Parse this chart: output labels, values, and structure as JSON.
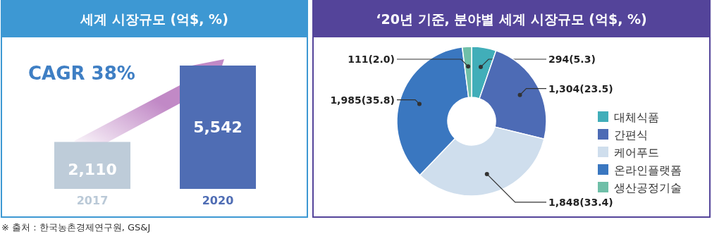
{
  "chart_data": [
    {
      "type": "bar",
      "title": "세계 시장규모 (억$, %)",
      "categories": [
        "2017",
        "2020"
      ],
      "values": [
        2110,
        5542
      ],
      "colors": [
        "#bac9d7",
        "#4f6db4"
      ],
      "value_labels": [
        "2,110",
        "5,542"
      ],
      "annotations": [
        "CAGR 38%",
        "※ 출처 : 한국농촌경제연구원, GS&J"
      ]
    },
    {
      "type": "donut",
      "title": "‘20년 기준, 분야별 세계 시장규모 (억$, %)",
      "categories": [
        "대체식품",
        "간편식",
        "케어푸드",
        "온라인플랫폼",
        "생산공정기술"
      ],
      "values": [
        294,
        1304,
        1848,
        1985,
        111
      ],
      "colors": [
        "#41aeb9",
        "#4d6bb5",
        "#cfdeed",
        "#3a77c0",
        "#6fbfa8"
      ],
      "value_labels": [
        "294(5.3)",
        "1,304(23.5)",
        "1,848(33.4)",
        "1,985(35.8)",
        "111(2.0)"
      ],
      "legend": "right"
    }
  ]
}
